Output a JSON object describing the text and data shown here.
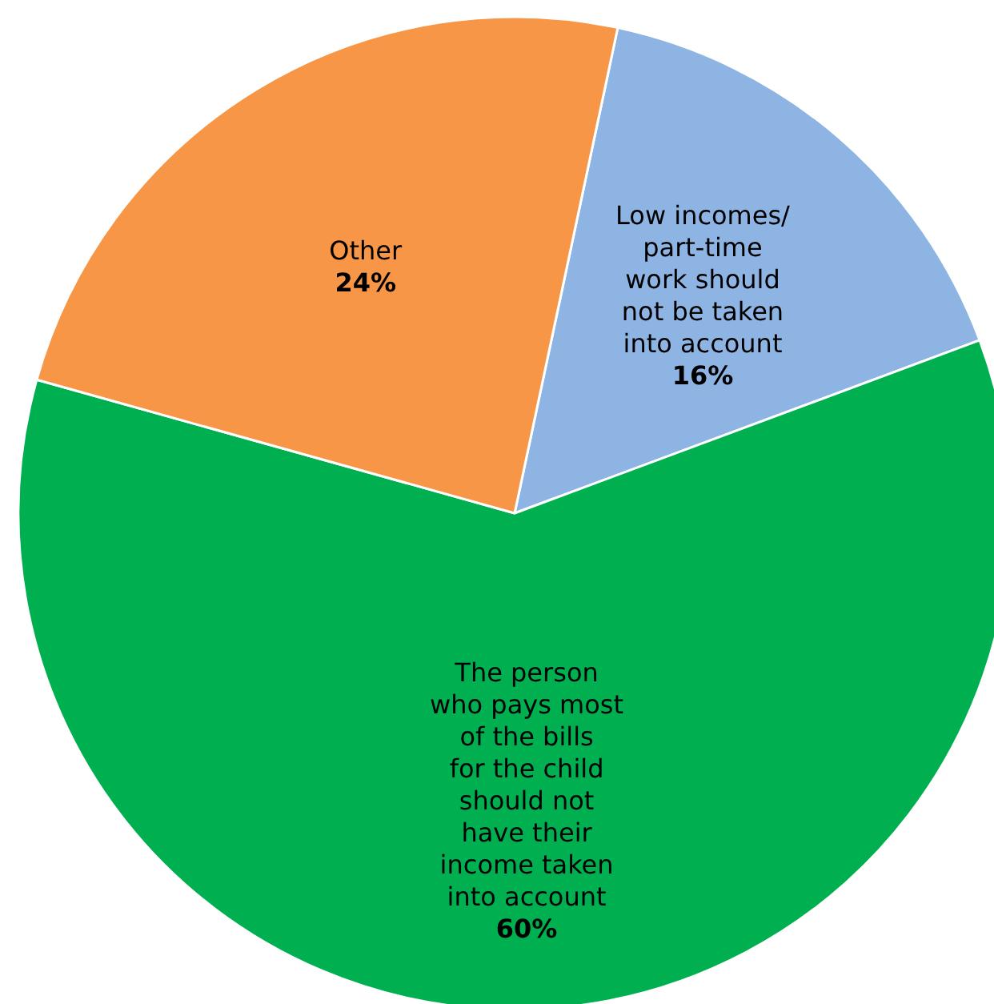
{
  "chart_data": {
    "type": "pie",
    "categories": [
      "Low incomes/ part-time work should not be taken into account",
      "The person who pays most of the bills for the child should not have their income taken into account",
      "Other"
    ],
    "values": [
      16,
      60,
      24
    ],
    "value_labels": [
      "16%",
      "60%",
      "24%"
    ],
    "colors": [
      "#8eb4e3",
      "#00b050",
      "#f79646"
    ]
  }
}
